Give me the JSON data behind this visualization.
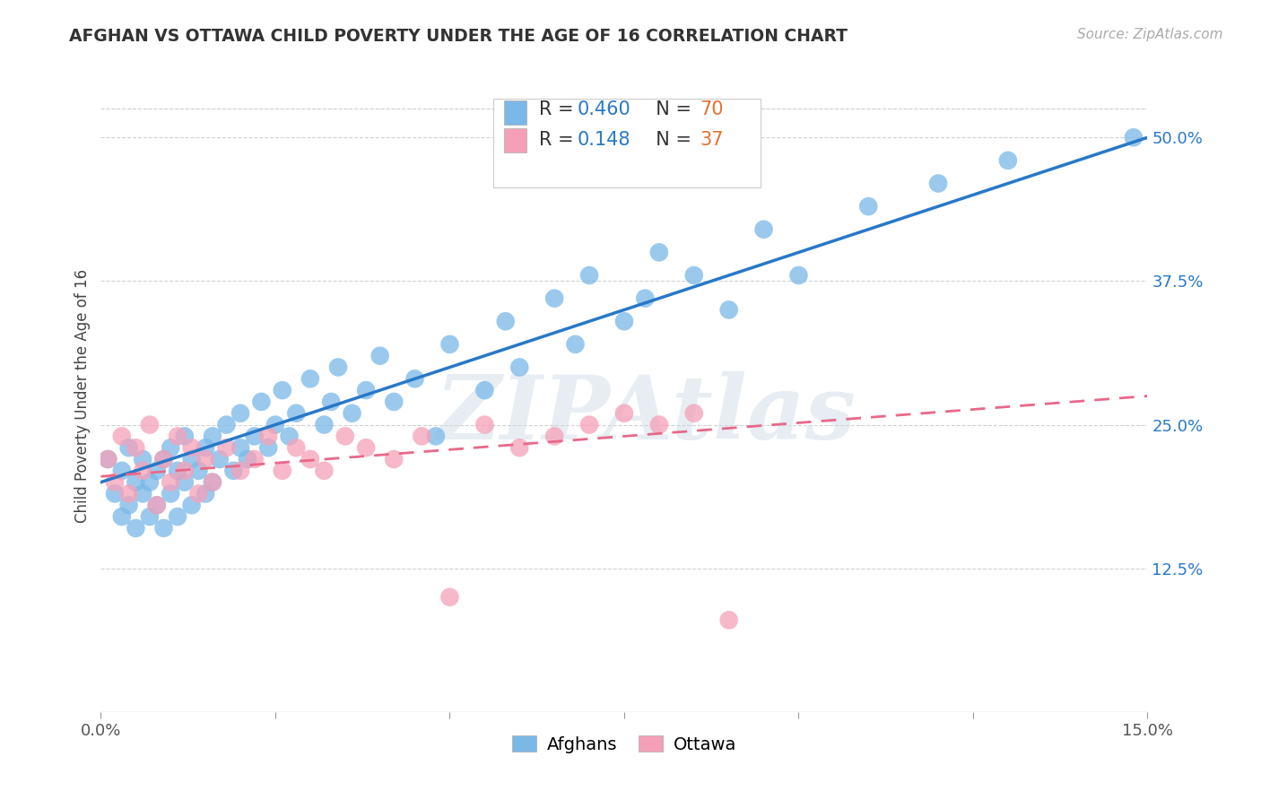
{
  "title": "AFGHAN VS OTTAWA CHILD POVERTY UNDER THE AGE OF 16 CORRELATION CHART",
  "source": "Source: ZipAtlas.com",
  "ylabel": "Child Poverty Under the Age of 16",
  "xlim": [
    0,
    0.15
  ],
  "ylim": [
    0,
    0.55
  ],
  "yticks": [
    0.125,
    0.25,
    0.375,
    0.5
  ],
  "ytick_labels": [
    "12.5%",
    "25.0%",
    "37.5%",
    "50.0%"
  ],
  "xticks": [
    0.0,
    0.025,
    0.05,
    0.075,
    0.1,
    0.125,
    0.15
  ],
  "xtick_labels": [
    "0.0%",
    "",
    "",
    "",
    "",
    "",
    "15.0%"
  ],
  "afghans_R": 0.46,
  "afghans_N": 70,
  "ottawa_R": 0.148,
  "ottawa_N": 37,
  "afghans_color": "#7ab8e8",
  "ottawa_color": "#f5a0b8",
  "trend_blue": "#2878c8",
  "trend_pink": "#e86888",
  "watermark": "ZIPAtlas",
  "afghan_trend_x": [
    0.0,
    0.15
  ],
  "afghan_trend_y": [
    0.2,
    0.5
  ],
  "ottawa_trend_x": [
    0.0,
    0.15
  ],
  "ottawa_trend_y": [
    0.205,
    0.275
  ],
  "afghans_x": [
    0.001,
    0.002,
    0.003,
    0.003,
    0.004,
    0.004,
    0.005,
    0.005,
    0.006,
    0.006,
    0.007,
    0.007,
    0.008,
    0.008,
    0.009,
    0.009,
    0.01,
    0.01,
    0.011,
    0.011,
    0.012,
    0.012,
    0.013,
    0.013,
    0.014,
    0.015,
    0.015,
    0.016,
    0.016,
    0.017,
    0.018,
    0.019,
    0.02,
    0.02,
    0.021,
    0.022,
    0.023,
    0.024,
    0.025,
    0.026,
    0.027,
    0.028,
    0.03,
    0.032,
    0.033,
    0.034,
    0.036,
    0.038,
    0.04,
    0.042,
    0.045,
    0.048,
    0.05,
    0.055,
    0.058,
    0.06,
    0.065,
    0.068,
    0.07,
    0.075,
    0.078,
    0.08,
    0.085,
    0.09,
    0.095,
    0.1,
    0.11,
    0.12,
    0.13,
    0.148
  ],
  "afghans_y": [
    0.22,
    0.19,
    0.17,
    0.21,
    0.18,
    0.23,
    0.16,
    0.2,
    0.19,
    0.22,
    0.17,
    0.2,
    0.18,
    0.21,
    0.16,
    0.22,
    0.19,
    0.23,
    0.17,
    0.21,
    0.2,
    0.24,
    0.18,
    0.22,
    0.21,
    0.19,
    0.23,
    0.2,
    0.24,
    0.22,
    0.25,
    0.21,
    0.23,
    0.26,
    0.22,
    0.24,
    0.27,
    0.23,
    0.25,
    0.28,
    0.24,
    0.26,
    0.29,
    0.25,
    0.27,
    0.3,
    0.26,
    0.28,
    0.31,
    0.27,
    0.29,
    0.24,
    0.32,
    0.28,
    0.34,
    0.3,
    0.36,
    0.32,
    0.38,
    0.34,
    0.36,
    0.4,
    0.38,
    0.35,
    0.42,
    0.38,
    0.44,
    0.46,
    0.48,
    0.5
  ],
  "ottawa_x": [
    0.001,
    0.002,
    0.003,
    0.004,
    0.005,
    0.006,
    0.007,
    0.008,
    0.009,
    0.01,
    0.011,
    0.012,
    0.013,
    0.014,
    0.015,
    0.016,
    0.018,
    0.02,
    0.022,
    0.024,
    0.026,
    0.028,
    0.03,
    0.032,
    0.035,
    0.038,
    0.042,
    0.046,
    0.05,
    0.055,
    0.06,
    0.065,
    0.07,
    0.075,
    0.08,
    0.085,
    0.09
  ],
  "ottawa_y": [
    0.22,
    0.2,
    0.24,
    0.19,
    0.23,
    0.21,
    0.25,
    0.18,
    0.22,
    0.2,
    0.24,
    0.21,
    0.23,
    0.19,
    0.22,
    0.2,
    0.23,
    0.21,
    0.22,
    0.24,
    0.21,
    0.23,
    0.22,
    0.21,
    0.24,
    0.23,
    0.22,
    0.24,
    0.1,
    0.25,
    0.23,
    0.24,
    0.25,
    0.26,
    0.25,
    0.26,
    0.08
  ]
}
